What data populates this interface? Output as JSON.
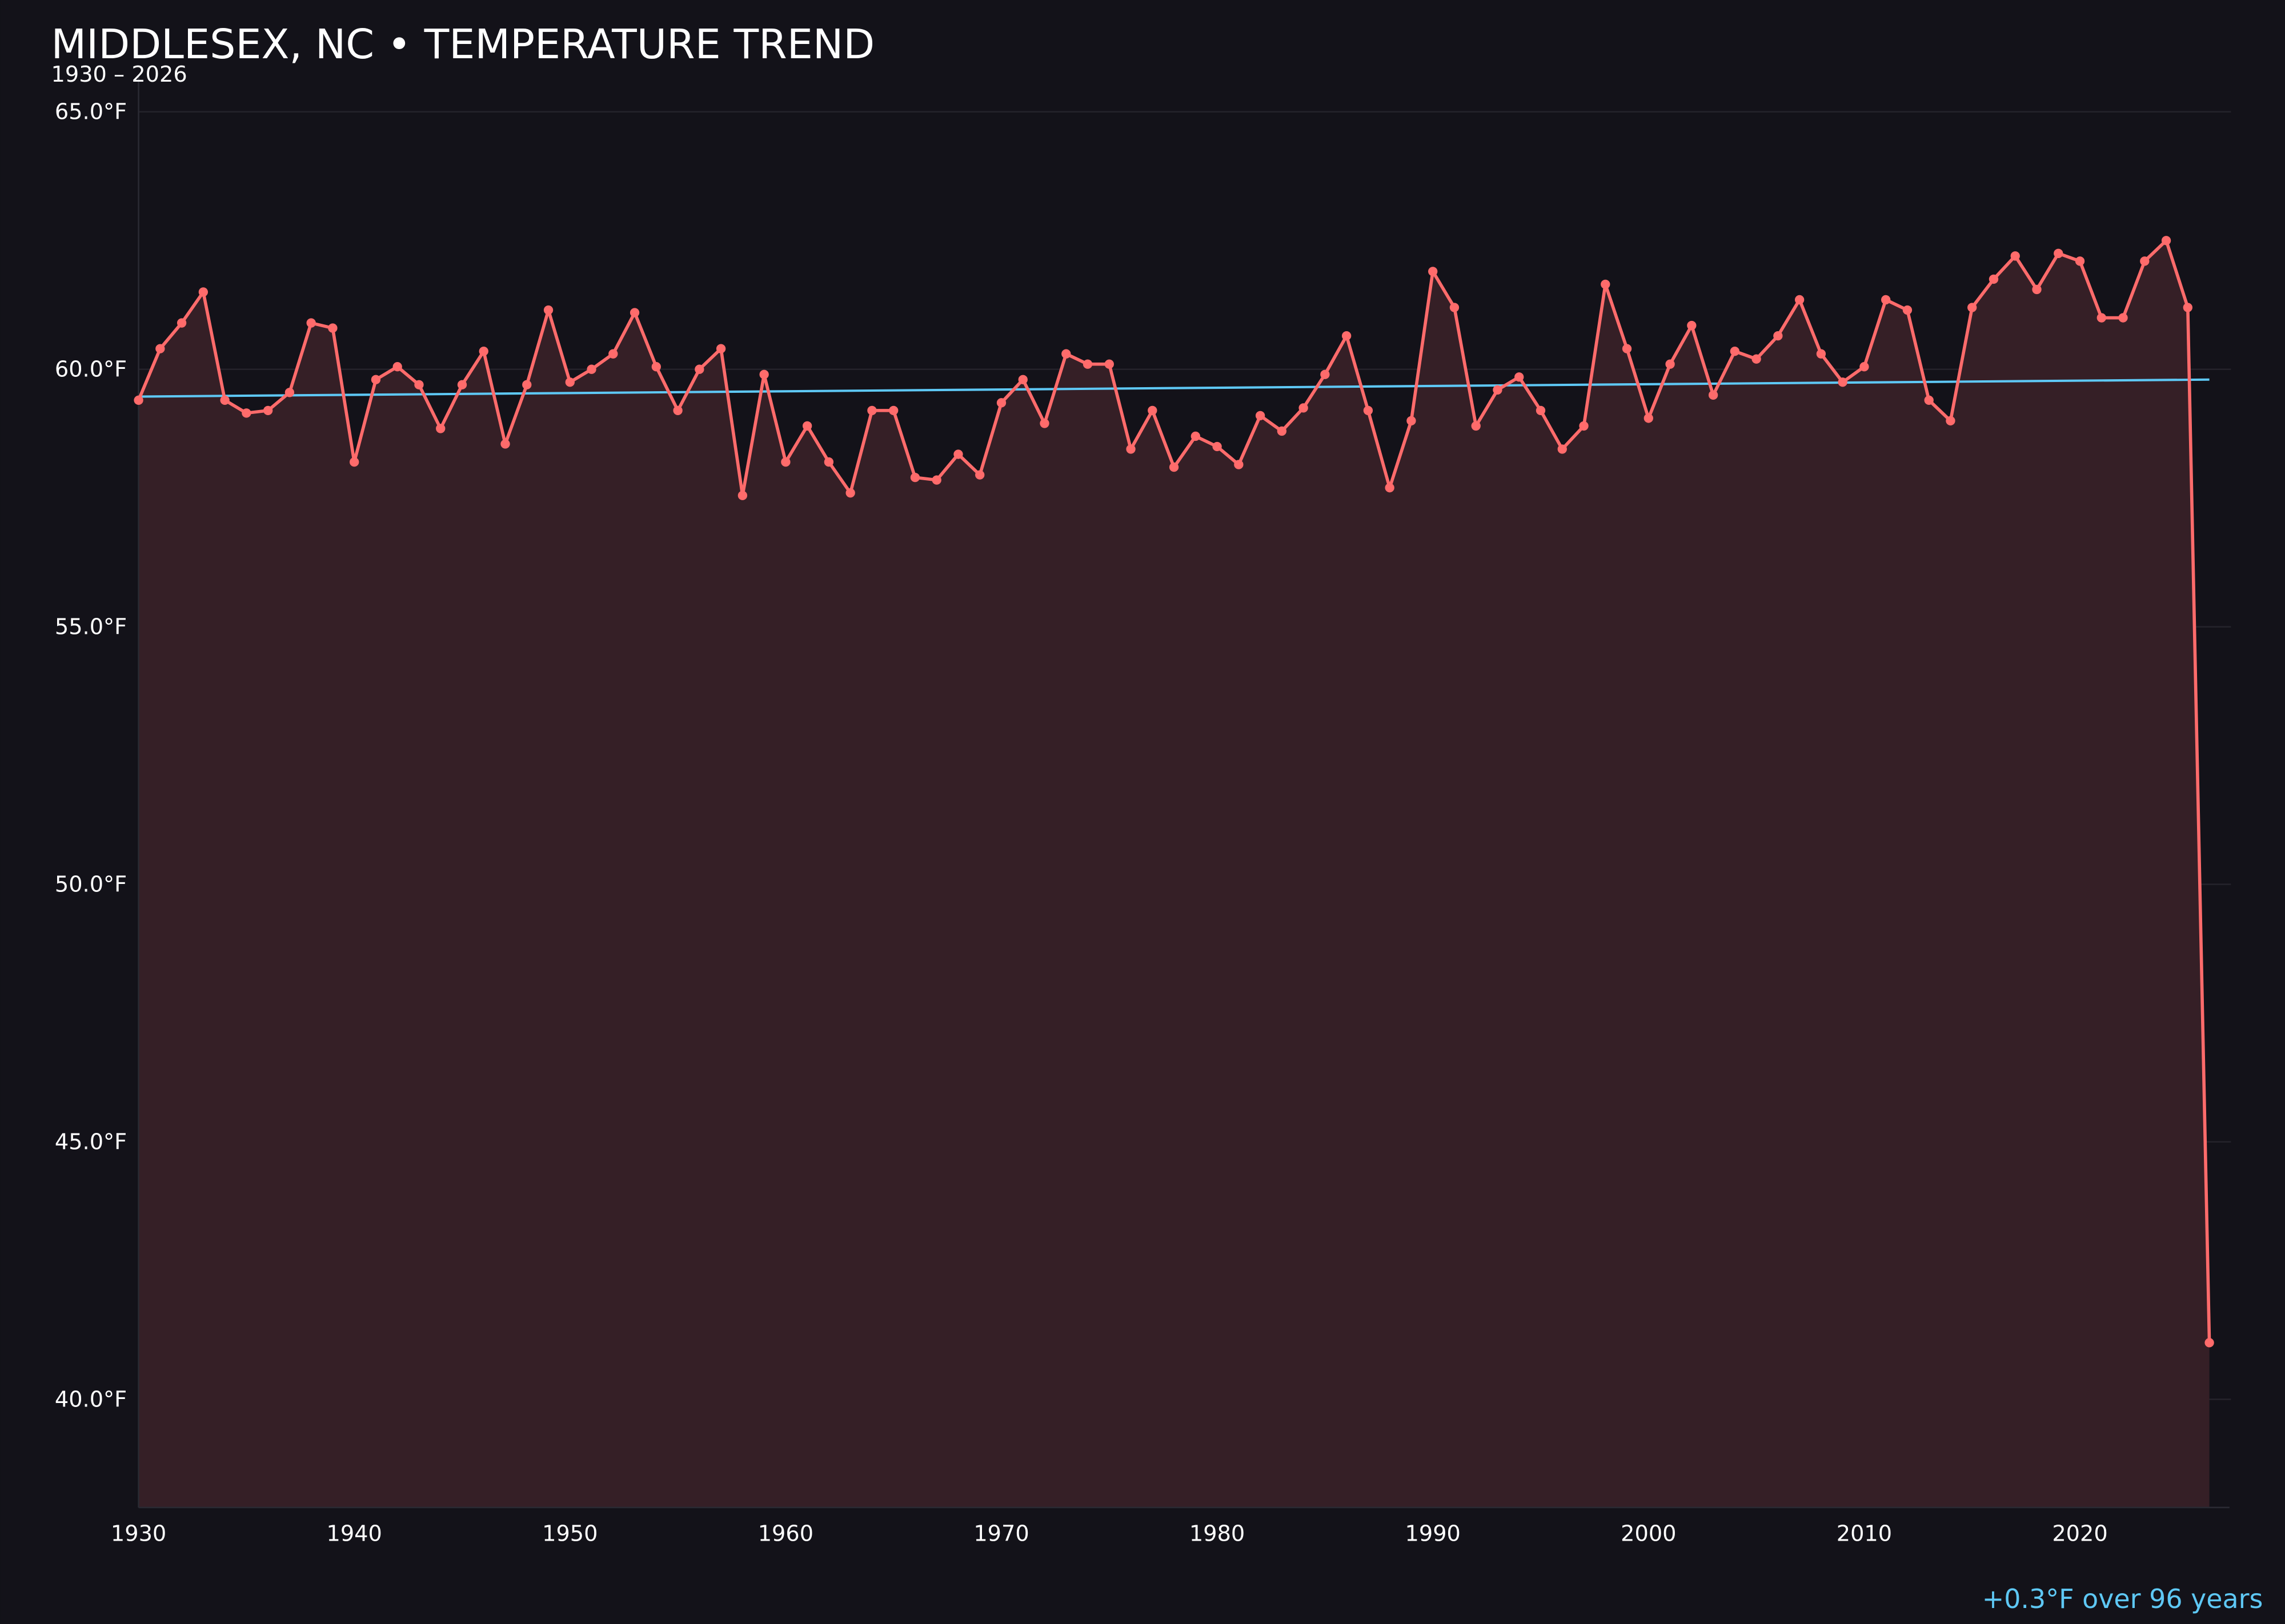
{
  "title": "MIDDLESEX, NC • TEMPERATURE TREND",
  "subtitle": "1930 – 2026",
  "footer_note": "+0.3°F over 96 years",
  "colors": {
    "background": "#131219",
    "series_line": "#ff6b6b",
    "area_fill": "#351f26",
    "trend_line": "#5ec8f5",
    "text": "#ffffff",
    "footer_text": "#5ec8f5"
  },
  "chart_data": {
    "type": "line",
    "title": "MIDDLESEX, NC • TEMPERATURE TREND",
    "subtitle": "1930 – 2026",
    "xlabel": "",
    "ylabel": "",
    "xlim": [
      1930,
      2027
    ],
    "ylim": [
      37.9,
      65.7
    ],
    "grid": true,
    "area_fill": true,
    "markers": true,
    "x_ticks": [
      1930,
      1940,
      1950,
      1960,
      1970,
      1980,
      1990,
      2000,
      2010,
      2020
    ],
    "x_tick_labels": [
      "1930",
      "1940",
      "1950",
      "1960",
      "1970",
      "1980",
      "1990",
      "2000",
      "2010",
      "2020"
    ],
    "y_ticks": [
      40,
      45,
      50,
      55,
      60,
      65
    ],
    "y_tick_labels": [
      "40.0°F",
      "45.0°F",
      "50.0°F",
      "55.0°F",
      "60.0°F",
      "65.0°F"
    ],
    "x": [
      1930,
      1931,
      1932,
      1933,
      1934,
      1935,
      1936,
      1937,
      1938,
      1939,
      1940,
      1941,
      1942,
      1943,
      1944,
      1945,
      1946,
      1947,
      1948,
      1949,
      1950,
      1951,
      1952,
      1953,
      1954,
      1955,
      1956,
      1957,
      1958,
      1959,
      1960,
      1961,
      1962,
      1963,
      1964,
      1965,
      1966,
      1967,
      1968,
      1969,
      1970,
      1971,
      1972,
      1973,
      1974,
      1975,
      1976,
      1977,
      1978,
      1979,
      1980,
      1981,
      1982,
      1983,
      1984,
      1985,
      1986,
      1987,
      1988,
      1989,
      1990,
      1991,
      1992,
      1993,
      1994,
      1995,
      1996,
      1997,
      1998,
      1999,
      2000,
      2001,
      2002,
      2003,
      2004,
      2005,
      2006,
      2007,
      2008,
      2009,
      2010,
      2011,
      2012,
      2013,
      2014,
      2015,
      2016,
      2017,
      2018,
      2019,
      2020,
      2021,
      2022,
      2023,
      2024,
      2025,
      2026
    ],
    "series": [
      {
        "values": [
          59.4,
          60.4,
          60.9,
          61.5,
          59.4,
          59.15,
          59.2,
          59.55,
          60.9,
          60.8,
          58.2,
          59.8,
          60.05,
          59.7,
          58.85,
          59.7,
          60.35,
          58.55,
          59.7,
          61.15,
          59.75,
          60.0,
          60.3,
          61.1,
          60.05,
          59.2,
          60.0,
          60.4,
          57.55,
          59.9,
          58.2,
          58.9,
          58.2,
          57.6,
          59.2,
          59.2,
          57.9,
          57.85,
          58.35,
          57.95,
          59.35,
          59.8,
          58.95,
          60.3,
          60.1,
          60.1,
          58.45,
          59.2,
          58.1,
          58.7,
          58.5,
          58.15,
          59.1,
          58.8,
          59.25,
          59.9,
          60.65,
          59.2,
          57.7,
          59.0,
          61.9,
          61.2,
          58.9,
          59.6,
          59.85,
          59.2,
          58.45,
          58.9,
          61.65,
          60.4,
          59.05,
          60.1,
          60.85,
          59.5,
          60.35,
          60.2,
          60.65,
          61.35,
          60.3,
          59.75,
          60.05,
          61.35,
          61.15,
          59.4,
          59.0,
          61.2,
          61.75,
          62.2,
          61.55,
          62.25,
          62.1,
          61.0,
          61.0,
          62.1,
          62.5,
          61.2,
          41.1
        ]
      }
    ],
    "trend": {
      "x": [
        1930,
        2026
      ],
      "values": [
        59.47,
        59.8
      ]
    }
  }
}
